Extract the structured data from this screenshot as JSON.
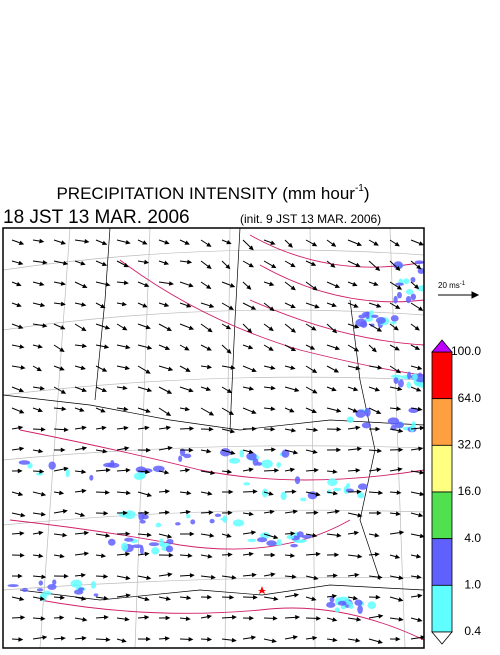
{
  "title": {
    "main": "PRECIPITATION INTENSITY (mm hour",
    "superscript": "-1",
    "close": ")"
  },
  "time": {
    "valid": "18 JST 13 MAR. 2006",
    "init": "(init. 9 JST 13 MAR. 2006)"
  },
  "wind_scale": {
    "label": "20 ms",
    "superscript": "-1"
  },
  "colorbar": {
    "labels": [
      "100.0",
      "64.0",
      "32.0",
      "16.0",
      "4.0",
      "1.0",
      "0.4"
    ],
    "colors": [
      "#ff0000",
      "#ffa040",
      "#ffff80",
      "#50e050",
      "#6060ff",
      "#60ffff"
    ],
    "over_color": "#c000ff",
    "under_color": "#ffffff"
  }
}
